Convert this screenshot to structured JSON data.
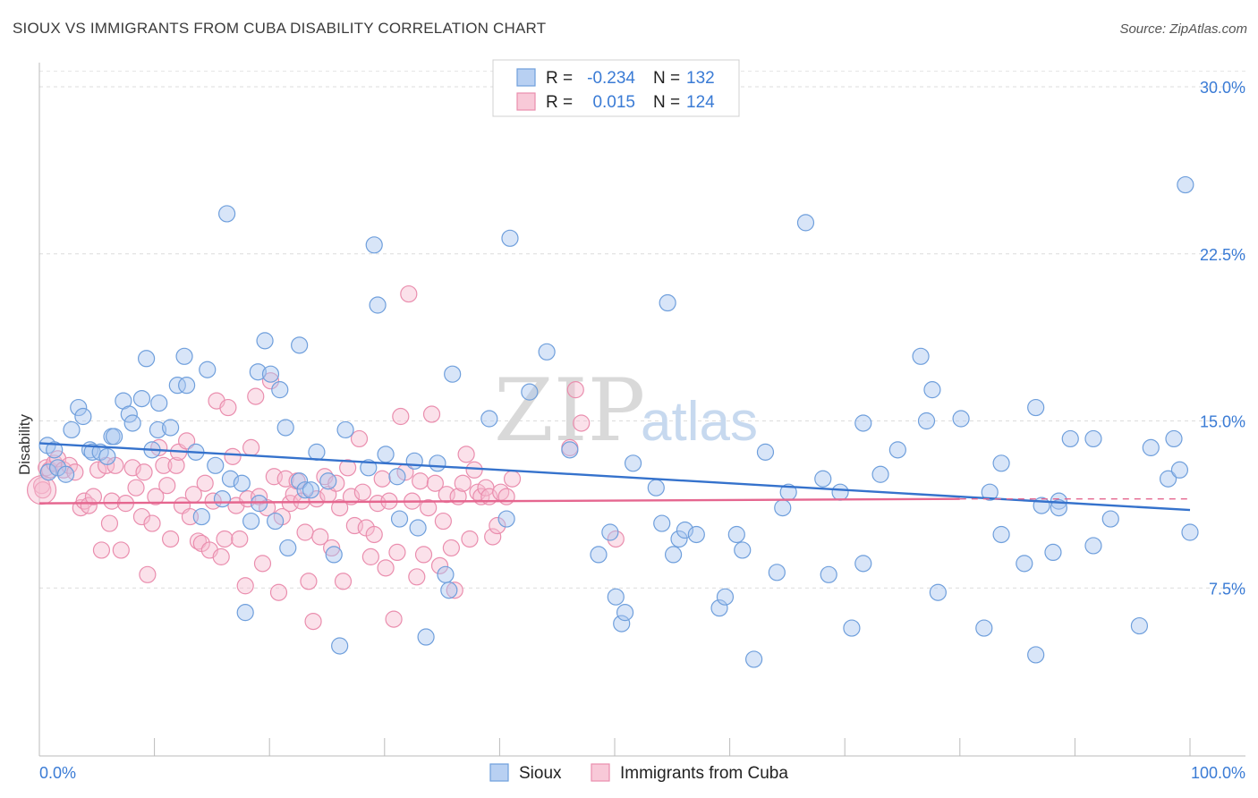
{
  "header": {
    "title": "SIOUX VS IMMIGRANTS FROM CUBA DISABILITY CORRELATION CHART",
    "source": "Source: ZipAtlas.com"
  },
  "watermark": {
    "zip": "ZIP",
    "atlas": "atlas"
  },
  "legend": {
    "rows": [
      {
        "r_label": "R =",
        "r_value": "-0.234",
        "n_label": "N =",
        "n_value": "132"
      },
      {
        "r_label": "R =",
        "r_value": "0.015",
        "n_label": "N =",
        "n_value": "124"
      }
    ]
  },
  "bottom_legend": {
    "items": [
      "Sioux",
      "Immigrants from Cuba"
    ]
  },
  "chart_data": {
    "type": "scatter",
    "title": "SIOUX VS IMMIGRANTS FROM CUBA DISABILITY CORRELATION CHART",
    "xlabel": "",
    "ylabel": "Disability",
    "xlim": [
      0,
      100
    ],
    "ylim": [
      0,
      31
    ],
    "x_tick_labels": [
      "0.0%",
      "100.0%"
    ],
    "y_ticks": [
      7.5,
      15.0,
      22.5,
      30.0
    ],
    "y_tick_labels": [
      "7.5%",
      "15.0%",
      "22.5%",
      "30.0%"
    ],
    "grid": "horizontal dashed",
    "legend_position": "top-center",
    "colors": {
      "sioux_fill": "#a9c6ef",
      "sioux_stroke": "#6f9fdc",
      "sioux_line": "#3572cc",
      "cuba_fill": "#f6bdd0",
      "cuba_stroke": "#ea8eae",
      "cuba_line": "#e5668f",
      "axis_label": "#3a7bd5"
    },
    "series": [
      {
        "name": "Sioux",
        "R": -0.234,
        "N": 132,
        "trend": {
          "x": [
            0,
            100
          ],
          "y": [
            14.0,
            11.0
          ]
        },
        "points": [
          [
            0.7,
            13.9
          ],
          [
            0.8,
            12.7
          ],
          [
            1.3,
            13.7
          ],
          [
            1.6,
            12.9
          ],
          [
            2.3,
            12.6
          ],
          [
            2.8,
            14.6
          ],
          [
            3.4,
            15.6
          ],
          [
            3.8,
            15.2
          ],
          [
            4.4,
            13.7
          ],
          [
            4.6,
            13.6
          ],
          [
            5.3,
            13.6
          ],
          [
            5.9,
            13.4
          ],
          [
            6.3,
            14.3
          ],
          [
            6.5,
            14.3
          ],
          [
            7.3,
            15.9
          ],
          [
            7.8,
            15.3
          ],
          [
            8.1,
            14.9
          ],
          [
            8.9,
            16.0
          ],
          [
            9.3,
            17.8
          ],
          [
            9.8,
            13.7
          ],
          [
            10.3,
            14.6
          ],
          [
            10.4,
            15.8
          ],
          [
            11.4,
            14.7
          ],
          [
            12.0,
            16.6
          ],
          [
            12.6,
            17.9
          ],
          [
            12.8,
            16.6
          ],
          [
            13.6,
            13.6
          ],
          [
            14.1,
            10.7
          ],
          [
            14.6,
            17.3
          ],
          [
            15.3,
            13.0
          ],
          [
            15.9,
            11.5
          ],
          [
            16.3,
            24.3
          ],
          [
            16.6,
            12.4
          ],
          [
            17.6,
            12.2
          ],
          [
            17.9,
            6.4
          ],
          [
            18.4,
            10.5
          ],
          [
            19.0,
            17.2
          ],
          [
            19.1,
            11.3
          ],
          [
            19.6,
            18.6
          ],
          [
            20.1,
            17.1
          ],
          [
            20.5,
            10.5
          ],
          [
            20.9,
            16.4
          ],
          [
            21.4,
            14.7
          ],
          [
            21.6,
            9.3
          ],
          [
            22.6,
            12.3
          ],
          [
            22.6,
            18.4
          ],
          [
            23.1,
            11.9
          ],
          [
            23.6,
            11.9
          ],
          [
            24.1,
            13.6
          ],
          [
            25.1,
            12.3
          ],
          [
            25.6,
            9.0
          ],
          [
            26.1,
            4.9
          ],
          [
            26.6,
            14.6
          ],
          [
            28.6,
            12.9
          ],
          [
            29.1,
            22.9
          ],
          [
            29.4,
            20.2
          ],
          [
            30.1,
            13.5
          ],
          [
            31.1,
            12.5
          ],
          [
            31.3,
            10.6
          ],
          [
            32.6,
            13.2
          ],
          [
            32.9,
            10.2
          ],
          [
            33.6,
            5.3
          ],
          [
            34.6,
            13.1
          ],
          [
            35.3,
            8.1
          ],
          [
            35.6,
            7.4
          ],
          [
            35.9,
            17.1
          ],
          [
            39.1,
            15.1
          ],
          [
            40.6,
            10.6
          ],
          [
            40.9,
            23.2
          ],
          [
            42.6,
            16.3
          ],
          [
            44.1,
            18.1
          ],
          [
            46.1,
            13.7
          ],
          [
            48.6,
            9.0
          ],
          [
            49.6,
            10.0
          ],
          [
            50.1,
            7.1
          ],
          [
            50.6,
            5.9
          ],
          [
            50.9,
            6.4
          ],
          [
            51.6,
            13.1
          ],
          [
            53.6,
            12.0
          ],
          [
            54.1,
            10.4
          ],
          [
            54.6,
            20.3
          ],
          [
            55.1,
            9.0
          ],
          [
            55.6,
            9.7
          ],
          [
            56.1,
            10.1
          ],
          [
            57.1,
            9.9
          ],
          [
            59.1,
            6.6
          ],
          [
            59.6,
            7.1
          ],
          [
            60.6,
            9.9
          ],
          [
            61.1,
            9.2
          ],
          [
            63.1,
            13.6
          ],
          [
            64.1,
            8.2
          ],
          [
            64.6,
            11.1
          ],
          [
            65.1,
            11.8
          ],
          [
            66.6,
            23.9
          ],
          [
            68.1,
            12.4
          ],
          [
            68.6,
            8.1
          ],
          [
            69.6,
            11.8
          ],
          [
            70.6,
            5.7
          ],
          [
            71.6,
            8.6
          ],
          [
            71.6,
            14.9
          ],
          [
            73.1,
            12.6
          ],
          [
            74.6,
            13.7
          ],
          [
            76.6,
            17.9
          ],
          [
            77.1,
            15.0
          ],
          [
            77.6,
            16.4
          ],
          [
            78.1,
            7.3
          ],
          [
            80.1,
            15.1
          ],
          [
            82.1,
            5.7
          ],
          [
            82.6,
            11.8
          ],
          [
            83.6,
            9.9
          ],
          [
            83.6,
            13.1
          ],
          [
            85.6,
            8.6
          ],
          [
            86.6,
            4.5
          ],
          [
            86.6,
            15.6
          ],
          [
            87.1,
            11.2
          ],
          [
            88.1,
            9.1
          ],
          [
            88.6,
            11.4
          ],
          [
            88.6,
            11.1
          ],
          [
            89.6,
            14.2
          ],
          [
            91.6,
            9.4
          ],
          [
            91.6,
            14.2
          ],
          [
            93.1,
            10.6
          ],
          [
            95.6,
            5.8
          ],
          [
            96.6,
            13.8
          ],
          [
            98.1,
            12.4
          ],
          [
            98.6,
            14.2
          ],
          [
            99.1,
            12.8
          ],
          [
            99.6,
            25.6
          ],
          [
            100.0,
            10.0
          ],
          [
            62.1,
            4.3
          ]
        ]
      },
      {
        "name": "Immigrants from Cuba",
        "R": 0.015,
        "N": 124,
        "trend": {
          "x": [
            0,
            80
          ],
          "y": [
            11.3,
            11.5
          ]
        },
        "dashed_extension": {
          "x": [
            80,
            100
          ],
          "y": [
            11.5,
            11.5
          ]
        },
        "points": [
          [
            0.2,
            12.1
          ],
          [
            0.3,
            11.9
          ],
          [
            0.6,
            12.9
          ],
          [
            0.9,
            12.8
          ],
          [
            1.3,
            13.1
          ],
          [
            1.6,
            13.3
          ],
          [
            2.1,
            12.8
          ],
          [
            2.6,
            13.0
          ],
          [
            3.1,
            12.7
          ],
          [
            3.6,
            11.1
          ],
          [
            3.9,
            11.4
          ],
          [
            4.3,
            11.2
          ],
          [
            4.7,
            11.6
          ],
          [
            5.1,
            12.8
          ],
          [
            5.4,
            9.2
          ],
          [
            5.8,
            13.0
          ],
          [
            6.1,
            10.4
          ],
          [
            6.3,
            11.4
          ],
          [
            6.6,
            13.0
          ],
          [
            7.1,
            9.2
          ],
          [
            7.5,
            11.3
          ],
          [
            8.1,
            12.9
          ],
          [
            8.4,
            12.0
          ],
          [
            8.9,
            10.7
          ],
          [
            9.1,
            12.7
          ],
          [
            9.4,
            8.1
          ],
          [
            9.8,
            10.4
          ],
          [
            10.1,
            11.6
          ],
          [
            10.4,
            13.8
          ],
          [
            10.8,
            13.0
          ],
          [
            11.1,
            12.1
          ],
          [
            11.4,
            9.7
          ],
          [
            11.9,
            13.0
          ],
          [
            12.1,
            13.6
          ],
          [
            12.4,
            11.2
          ],
          [
            12.8,
            14.1
          ],
          [
            13.1,
            10.7
          ],
          [
            13.4,
            11.7
          ],
          [
            13.8,
            9.6
          ],
          [
            14.1,
            9.5
          ],
          [
            14.4,
            12.2
          ],
          [
            14.8,
            9.2
          ],
          [
            15.1,
            11.4
          ],
          [
            15.4,
            15.9
          ],
          [
            15.8,
            8.9
          ],
          [
            16.1,
            9.7
          ],
          [
            16.4,
            15.6
          ],
          [
            16.8,
            13.4
          ],
          [
            17.1,
            11.2
          ],
          [
            17.4,
            9.7
          ],
          [
            17.9,
            7.6
          ],
          [
            18.1,
            11.5
          ],
          [
            18.4,
            13.8
          ],
          [
            18.8,
            16.1
          ],
          [
            19.1,
            11.6
          ],
          [
            19.4,
            8.6
          ],
          [
            19.8,
            11.1
          ],
          [
            20.1,
            16.8
          ],
          [
            20.4,
            12.5
          ],
          [
            20.8,
            7.3
          ],
          [
            21.1,
            10.7
          ],
          [
            21.4,
            12.4
          ],
          [
            21.8,
            11.3
          ],
          [
            22.1,
            11.7
          ],
          [
            22.4,
            12.3
          ],
          [
            22.8,
            11.4
          ],
          [
            23.1,
            10.0
          ],
          [
            23.4,
            7.8
          ],
          [
            23.8,
            6.0
          ],
          [
            24.1,
            11.5
          ],
          [
            24.4,
            9.8
          ],
          [
            24.8,
            12.5
          ],
          [
            25.1,
            11.7
          ],
          [
            25.4,
            9.3
          ],
          [
            25.8,
            12.2
          ],
          [
            26.1,
            11.1
          ],
          [
            26.4,
            7.8
          ],
          [
            26.8,
            12.9
          ],
          [
            27.1,
            11.6
          ],
          [
            27.4,
            10.3
          ],
          [
            27.8,
            14.2
          ],
          [
            28.1,
            11.8
          ],
          [
            28.4,
            10.2
          ],
          [
            28.8,
            8.9
          ],
          [
            29.1,
            9.9
          ],
          [
            29.4,
            11.3
          ],
          [
            29.8,
            12.4
          ],
          [
            30.1,
            8.4
          ],
          [
            30.4,
            11.4
          ],
          [
            30.8,
            6.1
          ],
          [
            31.1,
            9.1
          ],
          [
            31.4,
            15.2
          ],
          [
            31.8,
            12.7
          ],
          [
            32.1,
            20.7
          ],
          [
            32.4,
            11.4
          ],
          [
            32.8,
            8.0
          ],
          [
            33.1,
            12.3
          ],
          [
            33.4,
            9.0
          ],
          [
            33.8,
            11.1
          ],
          [
            34.1,
            15.3
          ],
          [
            34.4,
            12.2
          ],
          [
            34.8,
            8.5
          ],
          [
            35.1,
            10.5
          ],
          [
            35.4,
            11.7
          ],
          [
            35.8,
            9.3
          ],
          [
            36.1,
            7.4
          ],
          [
            36.4,
            11.6
          ],
          [
            36.8,
            12.2
          ],
          [
            37.1,
            13.5
          ],
          [
            37.4,
            9.7
          ],
          [
            37.8,
            12.8
          ],
          [
            38.1,
            11.8
          ],
          [
            38.4,
            11.6
          ],
          [
            38.8,
            12.0
          ],
          [
            39.1,
            11.6
          ],
          [
            39.4,
            9.8
          ],
          [
            39.8,
            10.3
          ],
          [
            40.1,
            11.8
          ],
          [
            40.6,
            11.6
          ],
          [
            41.1,
            12.4
          ],
          [
            46.6,
            16.4
          ],
          [
            47.1,
            14.9
          ],
          [
            46.1,
            13.8
          ],
          [
            50.1,
            9.7
          ]
        ]
      }
    ]
  }
}
